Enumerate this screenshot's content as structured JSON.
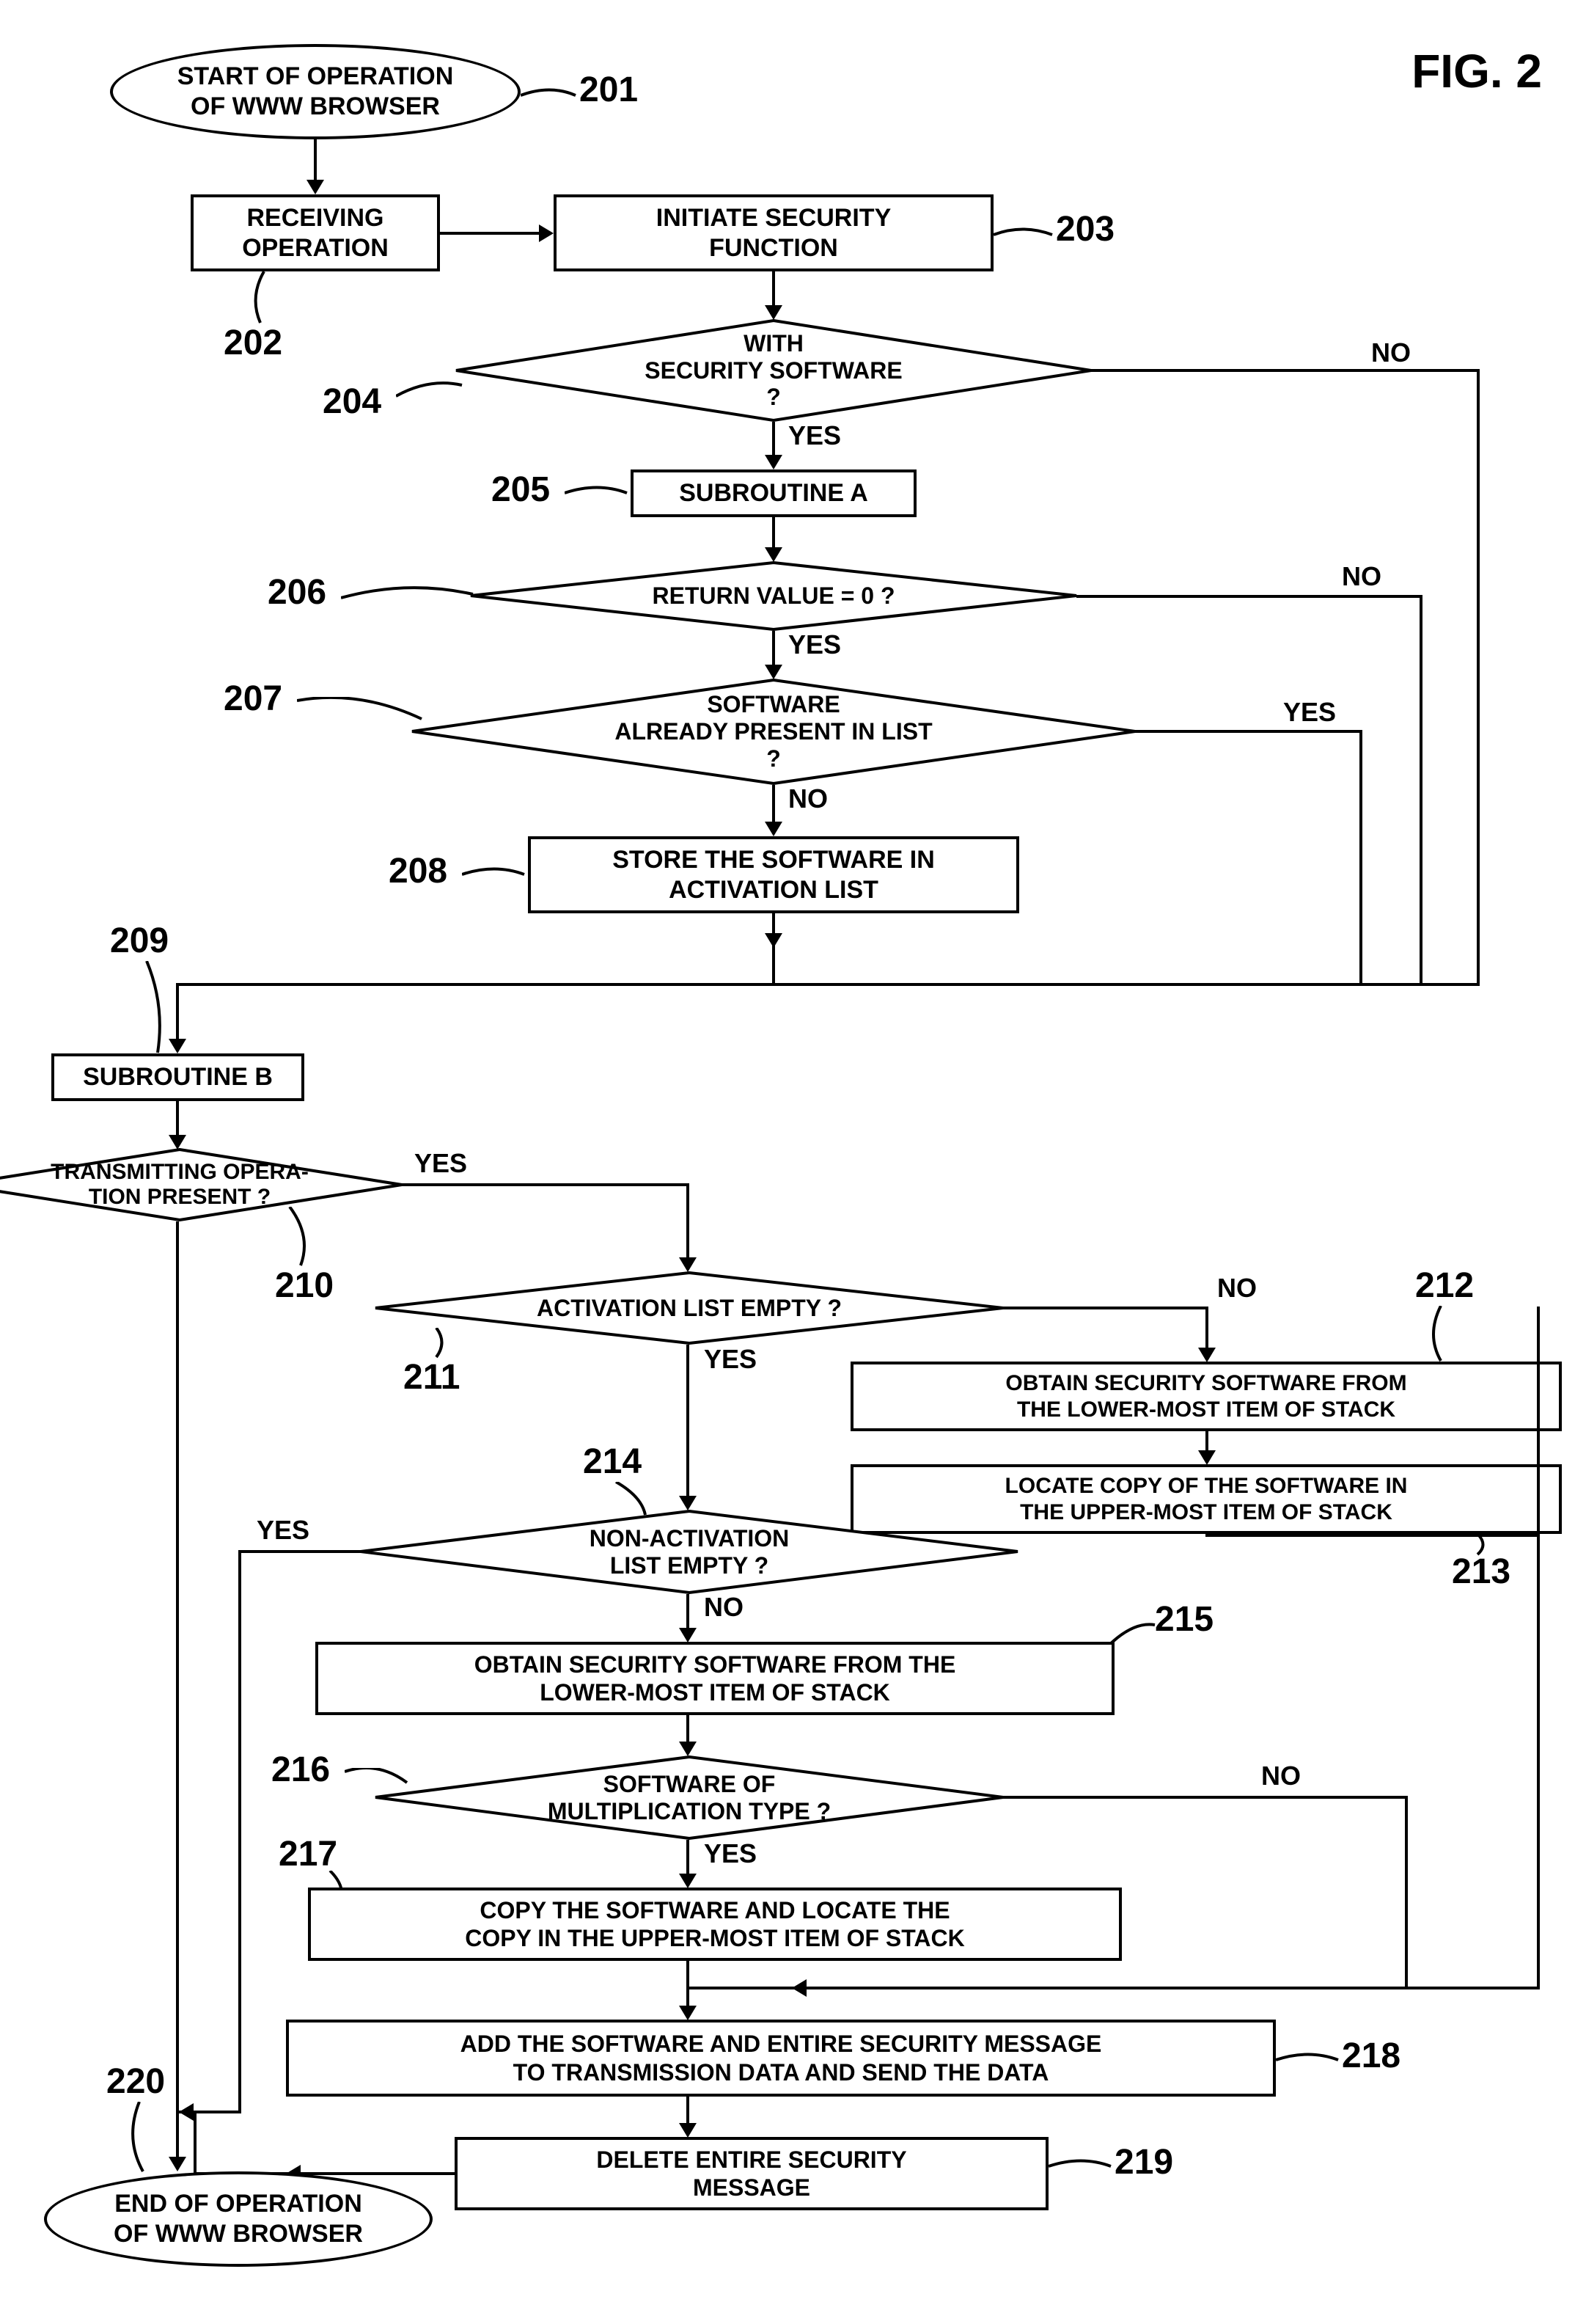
{
  "figure": {
    "title": "FIG. 2",
    "title_fontsize": 64
  },
  "style": {
    "stroke": "#000000",
    "stroke_width": 4,
    "background": "#ffffff",
    "font_family": "Arial, sans-serif",
    "node_fontsize": 34,
    "ref_fontsize": 48,
    "flowlabel_fontsize": 36
  },
  "nodes": {
    "n201": {
      "type": "terminator",
      "text": "START OF OPERATION\nOF WWW BROWSER"
    },
    "n202": {
      "type": "process",
      "text": "RECEIVING\nOPERATION"
    },
    "n203": {
      "type": "process",
      "text": "INITIATE SECURITY\nFUNCTION"
    },
    "n204": {
      "type": "decision",
      "text": "WITH\nSECURITY SOFTWARE\n?"
    },
    "n205": {
      "type": "process",
      "text": "SUBROUTINE A"
    },
    "n206": {
      "type": "decision",
      "text": "RETURN VALUE = 0 ?"
    },
    "n207": {
      "type": "decision",
      "text": "SOFTWARE\nALREADY PRESENT IN LIST\n?"
    },
    "n208": {
      "type": "process",
      "text": "STORE THE SOFTWARE IN\nACTIVATION LIST"
    },
    "n209": {
      "type": "process",
      "text": "SUBROUTINE B"
    },
    "n210": {
      "type": "decision",
      "text": "TRANSMITTING OPERA-\nTION PRESENT ?"
    },
    "n211": {
      "type": "decision",
      "text": "ACTIVATION LIST EMPTY ?"
    },
    "n212": {
      "type": "process",
      "text": "OBTAIN SECURITY SOFTWARE FROM\nTHE LOWER-MOST ITEM OF STACK"
    },
    "n213": {
      "type": "process",
      "text": "LOCATE COPY OF THE SOFTWARE IN\nTHE UPPER-MOST ITEM OF STACK"
    },
    "n214": {
      "type": "decision",
      "text": "NON-ACTIVATION\nLIST EMPTY ?"
    },
    "n215": {
      "type": "process",
      "text": "OBTAIN SECURITY SOFTWARE FROM THE\nLOWER-MOST ITEM OF STACK"
    },
    "n216": {
      "type": "decision",
      "text": "SOFTWARE OF\nMULTIPLICATION TYPE ?"
    },
    "n217": {
      "type": "process",
      "text": "COPY THE SOFTWARE AND LOCATE THE\nCOPY IN THE UPPER-MOST ITEM OF STACK"
    },
    "n218": {
      "type": "process",
      "text": "ADD THE SOFTWARE AND ENTIRE SECURITY MESSAGE\nTO TRANSMISSION DATA AND SEND THE DATA"
    },
    "n219": {
      "type": "process",
      "text": "DELETE ENTIRE SECURITY\nMESSAGE"
    },
    "n220": {
      "type": "terminator",
      "text": "END OF OPERATION\nOF WWW BROWSER"
    }
  },
  "refs": {
    "r201": "201",
    "r202": "202",
    "r203": "203",
    "r204": "204",
    "r205": "205",
    "r206": "206",
    "r207": "207",
    "r208": "208",
    "r209": "209",
    "r210": "210",
    "r211": "211",
    "r212": "212",
    "r213": "213",
    "r214": "214",
    "r215": "215",
    "r216": "216",
    "r217": "217",
    "r218": "218",
    "r219": "219",
    "r220": "220"
  },
  "flowlabels": {
    "n204_yes": "YES",
    "n204_no": "NO",
    "n206_yes": "YES",
    "n206_no": "NO",
    "n207_yes": "YES",
    "n207_no": "NO",
    "n210_yes": "YES",
    "n211_yes": "YES",
    "n211_no": "NO",
    "n214_yes": "YES",
    "n214_no": "NO",
    "n216_yes": "YES",
    "n216_no": "NO"
  }
}
